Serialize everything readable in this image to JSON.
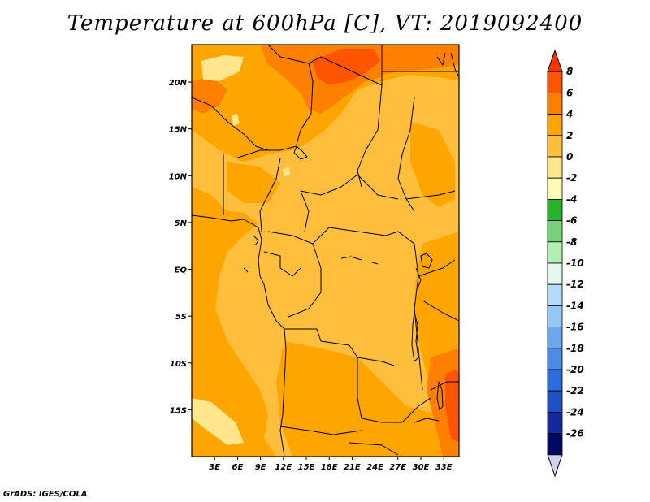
{
  "title": "Temperature at 600hPa [C], VT: 2019092400",
  "credit": "GrADS: IGES/COLA",
  "map": {
    "lon_range": [
      0,
      35
    ],
    "lat_range": [
      -20,
      24
    ],
    "x_ticks": [
      {
        "lon": 3,
        "label": "3E"
      },
      {
        "lon": 6,
        "label": "6E"
      },
      {
        "lon": 9,
        "label": "9E"
      },
      {
        "lon": 12,
        "label": "12E"
      },
      {
        "lon": 15,
        "label": "15E"
      },
      {
        "lon": 18,
        "label": "18E"
      },
      {
        "lon": 21,
        "label": "21E"
      },
      {
        "lon": 24,
        "label": "24E"
      },
      {
        "lon": 27,
        "label": "27E"
      },
      {
        "lon": 30,
        "label": "30E"
      },
      {
        "lon": 33,
        "label": "33E"
      }
    ],
    "y_ticks": [
      {
        "lat": 20,
        "label": "20N"
      },
      {
        "lat": 15,
        "label": "15N"
      },
      {
        "lat": 10,
        "label": "10N"
      },
      {
        "lat": 5,
        "label": "5N"
      },
      {
        "lat": 0,
        "label": "EQ"
      },
      {
        "lat": -5,
        "label": "5S"
      },
      {
        "lat": -10,
        "label": "10S"
      },
      {
        "lat": -15,
        "label": "15S"
      }
    ]
  },
  "colorbar": {
    "levels": [
      "8",
      "6",
      "4",
      "2",
      "0",
      "-2",
      "-4",
      "-6",
      "-8",
      "-10",
      "-12",
      "-14",
      "-16",
      "-18",
      "-20",
      "-22",
      "-24",
      "-26"
    ],
    "colors": [
      "#ff3300",
      "#ff5500",
      "#ff8000",
      "#ffa500",
      "#ffbe3c",
      "#ffe68c",
      "#fffab4",
      "#28b428",
      "#78d278",
      "#b4f0b4",
      "#e6f6ec",
      "#b4dcfa",
      "#96c8f5",
      "#6ea8ec",
      "#4c8ce6",
      "#2c6ce0",
      "#1e50c8",
      "#1428a0",
      "#000a64",
      "#d2d2f0"
    ]
  },
  "colors": {
    "base": "#ffbe3c",
    "warm": "#ffa500",
    "hot": "#ff8000",
    "hottest": "#ff5500",
    "cool": "#ffe68c"
  }
}
